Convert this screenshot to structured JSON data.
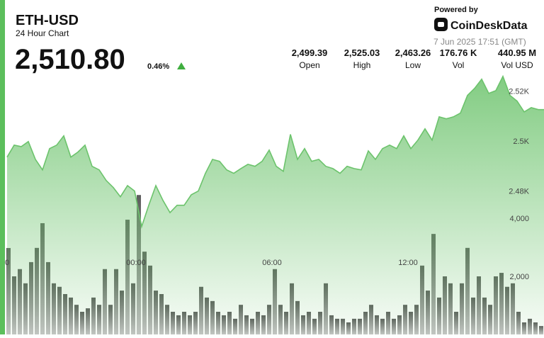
{
  "header": {
    "symbol": "ETH-USD",
    "subtitle": "24 Hour Chart",
    "price": "2,510.80",
    "change": "0.46%",
    "powered_by": "Powered by",
    "brand": "CoinDeskData",
    "timestamp": "7 Jun 2025 17:51 (GMT)"
  },
  "stats": [
    {
      "value": "2,499.39",
      "label": "Open"
    },
    {
      "value": "2,525.03",
      "label": "High"
    },
    {
      "value": "2,463.26",
      "label": "Low"
    },
    {
      "value": "176.76 K",
      "label": "Vol"
    },
    {
      "value": "440.95 M",
      "label": "Vol USD"
    }
  ],
  "chart_data": [
    {
      "type": "area",
      "color": "#6cc36c",
      "x": [
        -5.6875,
        -5.375,
        -5.0625,
        -4.75,
        -4.4375,
        -4.125,
        -3.8125,
        -3.5,
        -3.1875,
        -2.875,
        -2.5625,
        -2.25,
        -1.9375,
        -1.625,
        -1.3125,
        -1,
        -0.6875,
        -0.375,
        -0.0625,
        0.25,
        0.5625,
        0.875,
        1.1875,
        1.5,
        1.8125,
        2.125,
        2.4375,
        2.75,
        3.0625,
        3.375,
        3.6875,
        4,
        4.3125,
        4.625,
        4.9375,
        5.25,
        5.5625,
        5.875,
        6.1875,
        6.5,
        6.8125,
        7.125,
        7.4375,
        7.75,
        8.0625,
        8.375,
        8.6875,
        9,
        9.3125,
        9.625,
        9.9375,
        10.25,
        10.5625,
        10.875,
        11.1875,
        11.5,
        11.8125,
        12.125,
        12.4375,
        12.75,
        13.0625,
        13.375,
        13.6875,
        14,
        14.3125,
        14.625,
        14.9375,
        15.25,
        15.5625,
        15.875,
        16.1875,
        16.5,
        16.8125,
        17.125,
        17.4375,
        17.75,
        18
      ],
      "values": [
        2493.5,
        2498.3,
        2497.7,
        2499.7,
        2492.6,
        2488.4,
        2496.9,
        2498.3,
        2502.0,
        2493.5,
        2495.5,
        2498.3,
        2489.8,
        2488.4,
        2484.1,
        2481.3,
        2477.6,
        2482.1,
        2479.9,
        2465.7,
        2474.2,
        2482.1,
        2476.2,
        2471.3,
        2474.2,
        2474.2,
        2478.4,
        2479.9,
        2487.0,
        2492.6,
        2491.8,
        2488.4,
        2487.0,
        2488.9,
        2490.6,
        2489.8,
        2491.8,
        2496.3,
        2489.8,
        2487.8,
        2502.6,
        2492.6,
        2496.9,
        2491.8,
        2492.6,
        2489.8,
        2488.9,
        2487.0,
        2489.8,
        2488.9,
        2488.4,
        2496.0,
        2492.6,
        2496.9,
        2498.3,
        2496.9,
        2502.0,
        2496.9,
        2500.3,
        2504.8,
        2500.3,
        2509.6,
        2508.8,
        2509.6,
        2511.1,
        2518.2,
        2521.0,
        2524.7,
        2519.0,
        2520.1,
        2525.8,
        2518.2,
        2515.9,
        2511.6,
        2513.3,
        2512.5,
        2512.5
      ],
      "xlim": [
        -6,
        18
      ],
      "ylim": [
        2422.5,
        2530
      ],
      "xticks": [
        {
          "value": -6,
          "label": "0"
        },
        {
          "value": 0,
          "label": "00:00"
        },
        {
          "value": 6,
          "label": "06:00"
        },
        {
          "value": 12,
          "label": "12:00"
        }
      ],
      "yticks": [
        {
          "value": 2480,
          "label": "2.48K"
        },
        {
          "value": 2500,
          "label": "2.5K"
        },
        {
          "value": 2520,
          "label": "2.52K"
        }
      ]
    },
    {
      "type": "bar",
      "color": "#5c5c5c",
      "x": [
        -5.625,
        -5.375,
        -5.125,
        -4.875,
        -4.625,
        -4.375,
        -4.125,
        -3.875,
        -3.625,
        -3.375,
        -3.125,
        -2.875,
        -2.625,
        -2.375,
        -2.125,
        -1.875,
        -1.625,
        -1.375,
        -1.125,
        -0.875,
        -0.625,
        -0.375,
        -0.125,
        0.125,
        0.375,
        0.625,
        0.875,
        1.125,
        1.375,
        1.625,
        1.875,
        2.125,
        2.375,
        2.625,
        2.875,
        3.125,
        3.375,
        3.625,
        3.875,
        4.125,
        4.375,
        4.625,
        4.875,
        5.125,
        5.375,
        5.625,
        5.875,
        6.125,
        6.375,
        6.625,
        6.875,
        7.125,
        7.375,
        7.625,
        7.875,
        8.125,
        8.375,
        8.625,
        8.875,
        9.125,
        9.375,
        9.625,
        9.875,
        10.125,
        10.375,
        10.625,
        10.875,
        11.125,
        11.375,
        11.625,
        11.875,
        12.125,
        12.375,
        12.625,
        12.875,
        13.125,
        13.375,
        13.625,
        13.875,
        14.125,
        14.375,
        14.625,
        14.875,
        15.125,
        15.375,
        15.625,
        15.875,
        16.125,
        16.375,
        16.625,
        16.875,
        17.125,
        17.375,
        17.625,
        17.875
      ],
      "values": [
        2975,
        2000,
        2250,
        1760,
        2490,
        2980,
        3830,
        2490,
        1760,
        1640,
        1390,
        1270,
        1020,
        780,
        900,
        1270,
        1020,
        2250,
        1020,
        2250,
        1510,
        3950,
        1760,
        4800,
        2850,
        2370,
        1510,
        1390,
        1020,
        780,
        660,
        780,
        660,
        780,
        1640,
        1270,
        1150,
        780,
        660,
        780,
        540,
        1020,
        660,
        540,
        780,
        660,
        1020,
        2250,
        1020,
        780,
        1760,
        1150,
        660,
        780,
        540,
        780,
        1760,
        660,
        540,
        540,
        415,
        540,
        540,
        780,
        1020,
        660,
        540,
        780,
        540,
        660,
        1020,
        780,
        1020,
        2370,
        1510,
        3460,
        1270,
        2000,
        1760,
        780,
        1760,
        2980,
        1270,
        2000,
        1270,
        1020,
        2000,
        2120,
        1640,
        1760,
        780,
        415,
        540,
        415,
        290
      ],
      "xlim": [
        -6,
        18
      ],
      "ylim": [
        0,
        5000
      ],
      "yticks": [
        {
          "value": 2000,
          "label": "2,000"
        },
        {
          "value": 4000,
          "label": "4,000"
        }
      ]
    }
  ]
}
